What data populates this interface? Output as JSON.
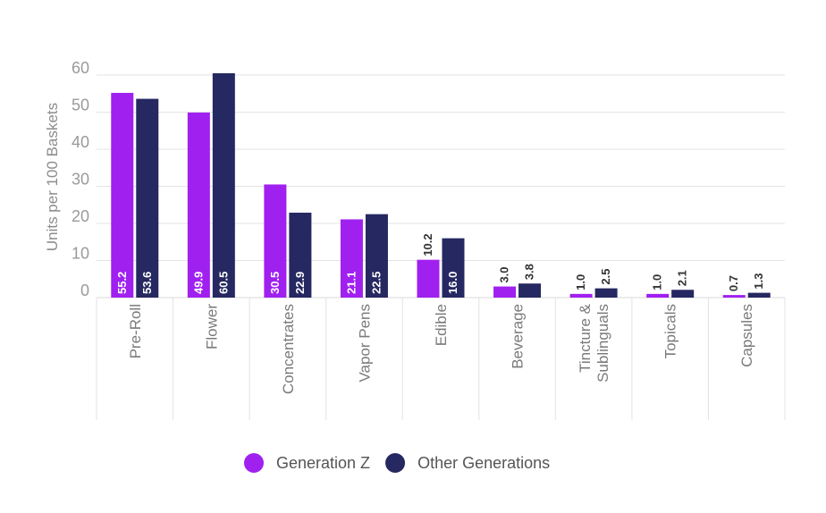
{
  "chart_data": {
    "type": "bar",
    "ylabel": "Units per 100 Baskets",
    "xlabel": "",
    "ylim": [
      0,
      60
    ],
    "yticks": [
      "0",
      "10",
      "20",
      "30",
      "40",
      "50",
      "60"
    ],
    "grid": true,
    "legend_position": "bottom",
    "categories": [
      [
        "Pre-Roll"
      ],
      [
        "Flower"
      ],
      [
        "Concentrates"
      ],
      [
        "Vapor Pens"
      ],
      [
        "Edible"
      ],
      [
        "Beverage"
      ],
      [
        "Tincture &",
        "Sublinguals"
      ],
      [
        "Topicals"
      ],
      [
        "Capsules"
      ]
    ],
    "series": [
      {
        "name": "Generation Z",
        "color": "#a020f0",
        "values": [
          55.2,
          49.9,
          30.5,
          21.1,
          10.2,
          3.0,
          1.0,
          1.0,
          0.7
        ],
        "labels": [
          "55.2",
          "49.9",
          "30.5",
          "21.1",
          "10.2",
          "3.0",
          "1.0",
          "1.0",
          "0.7"
        ]
      },
      {
        "name": "Other Generations",
        "color": "#262861",
        "values": [
          53.6,
          60.5,
          22.9,
          22.5,
          16.0,
          3.8,
          2.5,
          2.1,
          1.3
        ],
        "labels": [
          "53.6",
          "60.5",
          "22.9",
          "22.5",
          "16.0",
          "3.8",
          "2.5",
          "2.1",
          "1.3"
        ]
      }
    ]
  }
}
